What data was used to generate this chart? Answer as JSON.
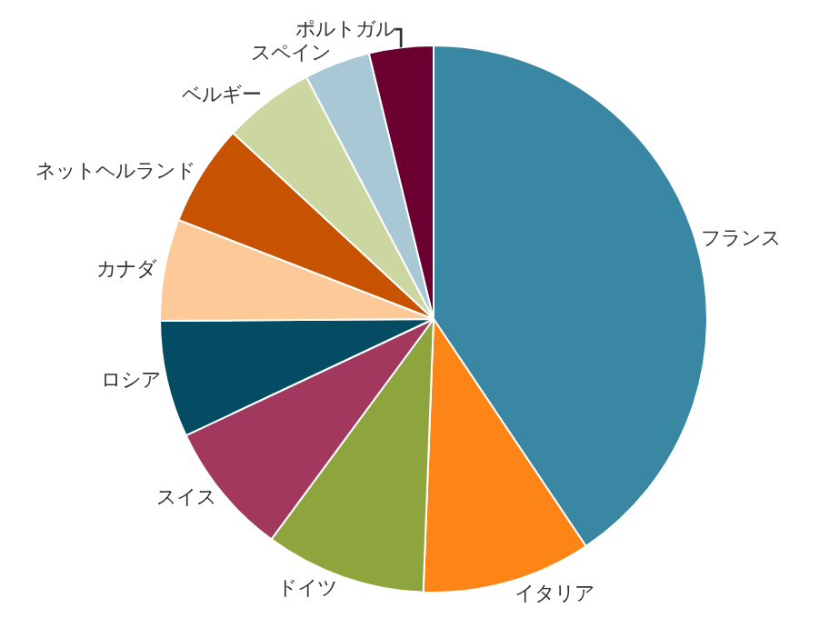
{
  "chart_data": {
    "type": "pie",
    "categories": [
      "フランス",
      "イタリア",
      "ドイツ",
      "スイス",
      "ロシア",
      "カナダ",
      "ネットヘルランド",
      "ベルギー",
      "スペイン",
      "ポルトガル"
    ],
    "values": [
      40.6,
      10,
      9.5,
      7.9,
      6.9,
      6,
      6,
      5.4,
      3.9,
      3.8
    ],
    "colors": [
      "#3a87a4",
      "#fd8518",
      "#8ea43c",
      "#a2385e",
      "#044c64",
      "#fdc998",
      "#c75200",
      "#cbd6a0",
      "#a8c8d5",
      "#6b0030"
    ],
    "legend": false
  }
}
